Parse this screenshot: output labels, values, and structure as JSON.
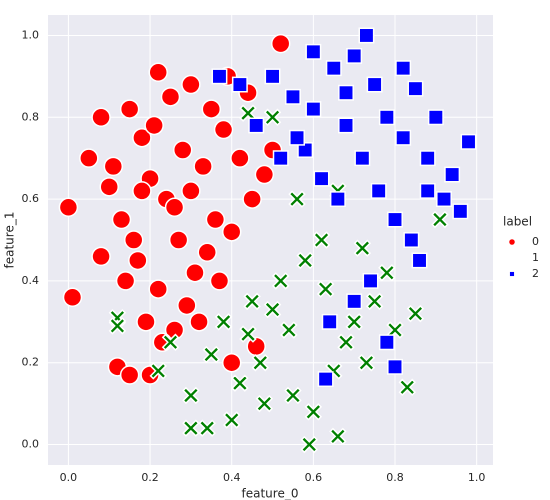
{
  "chart_data": {
    "type": "scatter",
    "xlabel": "feature_0",
    "ylabel": "feature_1",
    "legend_title": "label",
    "legend": "right",
    "grid": true,
    "xlim": [
      -0.05,
      1.04
    ],
    "ylim": [
      -0.05,
      1.05
    ],
    "xticks": [
      {
        "value": 0,
        "label": "0.0"
      },
      0.2,
      0.4,
      0.6,
      0.8,
      {
        "value": 1,
        "label": "1.0"
      }
    ],
    "yticks": [
      {
        "value": 0,
        "label": "0.0"
      },
      0.2,
      0.4,
      0.6,
      0.8,
      {
        "value": 1,
        "label": "1.0"
      }
    ],
    "series": [
      {
        "name": "0",
        "color": "#ff0000",
        "marker": "circle",
        "x": [
          0.0,
          0.01,
          0.08,
          0.22,
          0.52,
          0.15,
          0.12,
          0.15,
          0.2,
          0.46,
          0.4,
          0.05,
          0.1,
          0.18,
          0.25,
          0.3,
          0.35,
          0.28,
          0.2,
          0.13,
          0.24,
          0.33,
          0.38,
          0.42,
          0.27,
          0.17,
          0.22,
          0.31,
          0.45,
          0.36,
          0.19,
          0.26,
          0.08,
          0.14,
          0.29,
          0.34,
          0.4,
          0.48,
          0.23,
          0.16,
          0.3,
          0.37,
          0.21,
          0.11,
          0.44,
          0.5,
          0.32,
          0.26,
          0.18,
          0.39
        ],
        "y": [
          0.58,
          0.36,
          0.8,
          0.91,
          0.98,
          0.82,
          0.19,
          0.17,
          0.17,
          0.24,
          0.2,
          0.7,
          0.63,
          0.75,
          0.85,
          0.88,
          0.82,
          0.72,
          0.65,
          0.55,
          0.6,
          0.68,
          0.77,
          0.7,
          0.5,
          0.45,
          0.38,
          0.42,
          0.6,
          0.55,
          0.3,
          0.28,
          0.46,
          0.4,
          0.34,
          0.47,
          0.52,
          0.66,
          0.25,
          0.5,
          0.62,
          0.4,
          0.78,
          0.68,
          0.86,
          0.72,
          0.3,
          0.58,
          0.62,
          0.9
        ]
      },
      {
        "name": "1",
        "color": "#008000",
        "marker": "x",
        "x": [
          0.12,
          0.12,
          0.3,
          0.34,
          0.59,
          0.66,
          0.83,
          0.91,
          0.44,
          0.5,
          0.25,
          0.35,
          0.42,
          0.48,
          0.55,
          0.6,
          0.65,
          0.7,
          0.75,
          0.8,
          0.38,
          0.45,
          0.52,
          0.58,
          0.63,
          0.68,
          0.73,
          0.78,
          0.85,
          0.4,
          0.47,
          0.54,
          0.62,
          0.56,
          0.66,
          0.72,
          0.22,
          0.3,
          0.5,
          0.44
        ],
        "y": [
          0.31,
          0.29,
          0.04,
          0.04,
          0.0,
          0.02,
          0.14,
          0.55,
          0.81,
          0.8,
          0.25,
          0.22,
          0.15,
          0.1,
          0.12,
          0.08,
          0.18,
          0.3,
          0.35,
          0.28,
          0.3,
          0.35,
          0.4,
          0.45,
          0.38,
          0.25,
          0.2,
          0.42,
          0.32,
          0.06,
          0.2,
          0.28,
          0.5,
          0.6,
          0.62,
          0.48,
          0.18,
          0.12,
          0.33,
          0.27
        ]
      },
      {
        "name": "2",
        "color": "#0000ff",
        "marker": "square",
        "x": [
          0.98,
          0.96,
          0.92,
          0.73,
          0.6,
          0.37,
          0.8,
          0.63,
          0.85,
          0.5,
          0.55,
          0.65,
          0.7,
          0.75,
          0.78,
          0.82,
          0.88,
          0.9,
          0.68,
          0.72,
          0.58,
          0.62,
          0.66,
          0.76,
          0.8,
          0.84,
          0.86,
          0.74,
          0.7,
          0.64,
          0.52,
          0.46,
          0.42,
          0.56,
          0.88,
          0.78,
          0.82,
          0.6,
          0.68,
          0.94
        ],
        "y": [
          0.74,
          0.57,
          0.6,
          1.0,
          0.96,
          0.9,
          0.19,
          0.16,
          0.87,
          0.9,
          0.85,
          0.92,
          0.95,
          0.88,
          0.8,
          0.75,
          0.7,
          0.8,
          0.78,
          0.7,
          0.72,
          0.65,
          0.6,
          0.62,
          0.55,
          0.5,
          0.45,
          0.4,
          0.35,
          0.3,
          0.7,
          0.78,
          0.88,
          0.75,
          0.62,
          0.25,
          0.92,
          0.82,
          0.86,
          0.66
        ]
      }
    ]
  }
}
